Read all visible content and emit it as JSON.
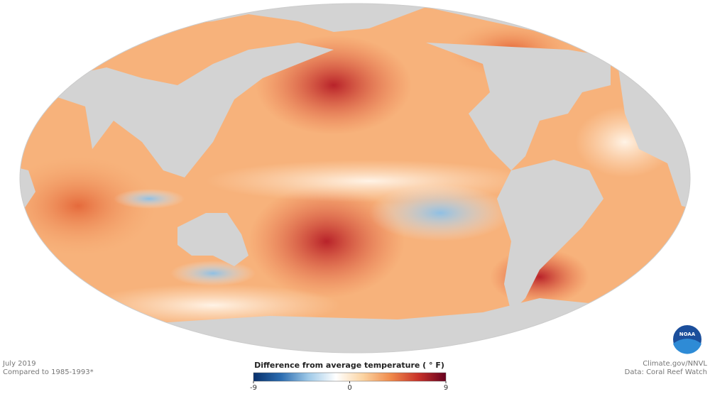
{
  "header": {
    "date": "July 2019",
    "baseline": "Compared to 1985-1993*"
  },
  "credits": {
    "source": "Climate.gov/NNVL",
    "data": "Data: Coral Reef Watch",
    "logo": "NOAA"
  },
  "legend": {
    "title": "Difference from average temperature ( ° F)",
    "range": [
      -9,
      9
    ],
    "ticks": [
      -9,
      0,
      9
    ],
    "colors": [
      "#08306b",
      "#2b6cb0",
      "#9ec9e8",
      "#ffffff",
      "#fbd3a0",
      "#f08a4b",
      "#c8322a",
      "#67001f"
    ]
  }
}
